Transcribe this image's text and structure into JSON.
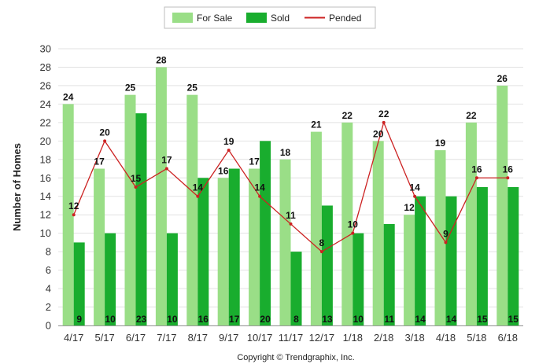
{
  "chart_data": {
    "type": "bar",
    "categories": [
      "4/17",
      "5/17",
      "6/17",
      "7/17",
      "8/17",
      "9/17",
      "10/17",
      "11/17",
      "12/17",
      "1/18",
      "2/18",
      "3/18",
      "4/18",
      "5/18",
      "6/18"
    ],
    "series": [
      {
        "name": "For Sale",
        "kind": "bar",
        "color": "#9ADE87",
        "values": [
          24,
          17,
          25,
          28,
          25,
          16,
          17,
          18,
          21,
          22,
          20,
          12,
          19,
          22,
          26
        ]
      },
      {
        "name": "Sold",
        "kind": "bar",
        "color": "#19AD2E",
        "values": [
          9,
          10,
          23,
          10,
          16,
          17,
          20,
          8,
          13,
          10,
          11,
          14,
          14,
          15,
          15
        ]
      },
      {
        "name": "Pended",
        "kind": "line",
        "color": "#CC2222",
        "values": [
          12,
          20,
          15,
          17,
          14,
          19,
          14,
          11,
          8,
          10,
          22,
          14,
          9,
          16,
          16
        ]
      }
    ],
    "ylabel": "Number of Homes",
    "xlabel": "",
    "ylim": [
      0,
      30
    ],
    "yticks": [
      0,
      2,
      4,
      6,
      8,
      10,
      12,
      14,
      16,
      18,
      20,
      22,
      24,
      26,
      28,
      30
    ],
    "grid": true,
    "legend_position": "top-center"
  },
  "footer": {
    "copyright": "Copyright © Trendgraphix, Inc."
  }
}
